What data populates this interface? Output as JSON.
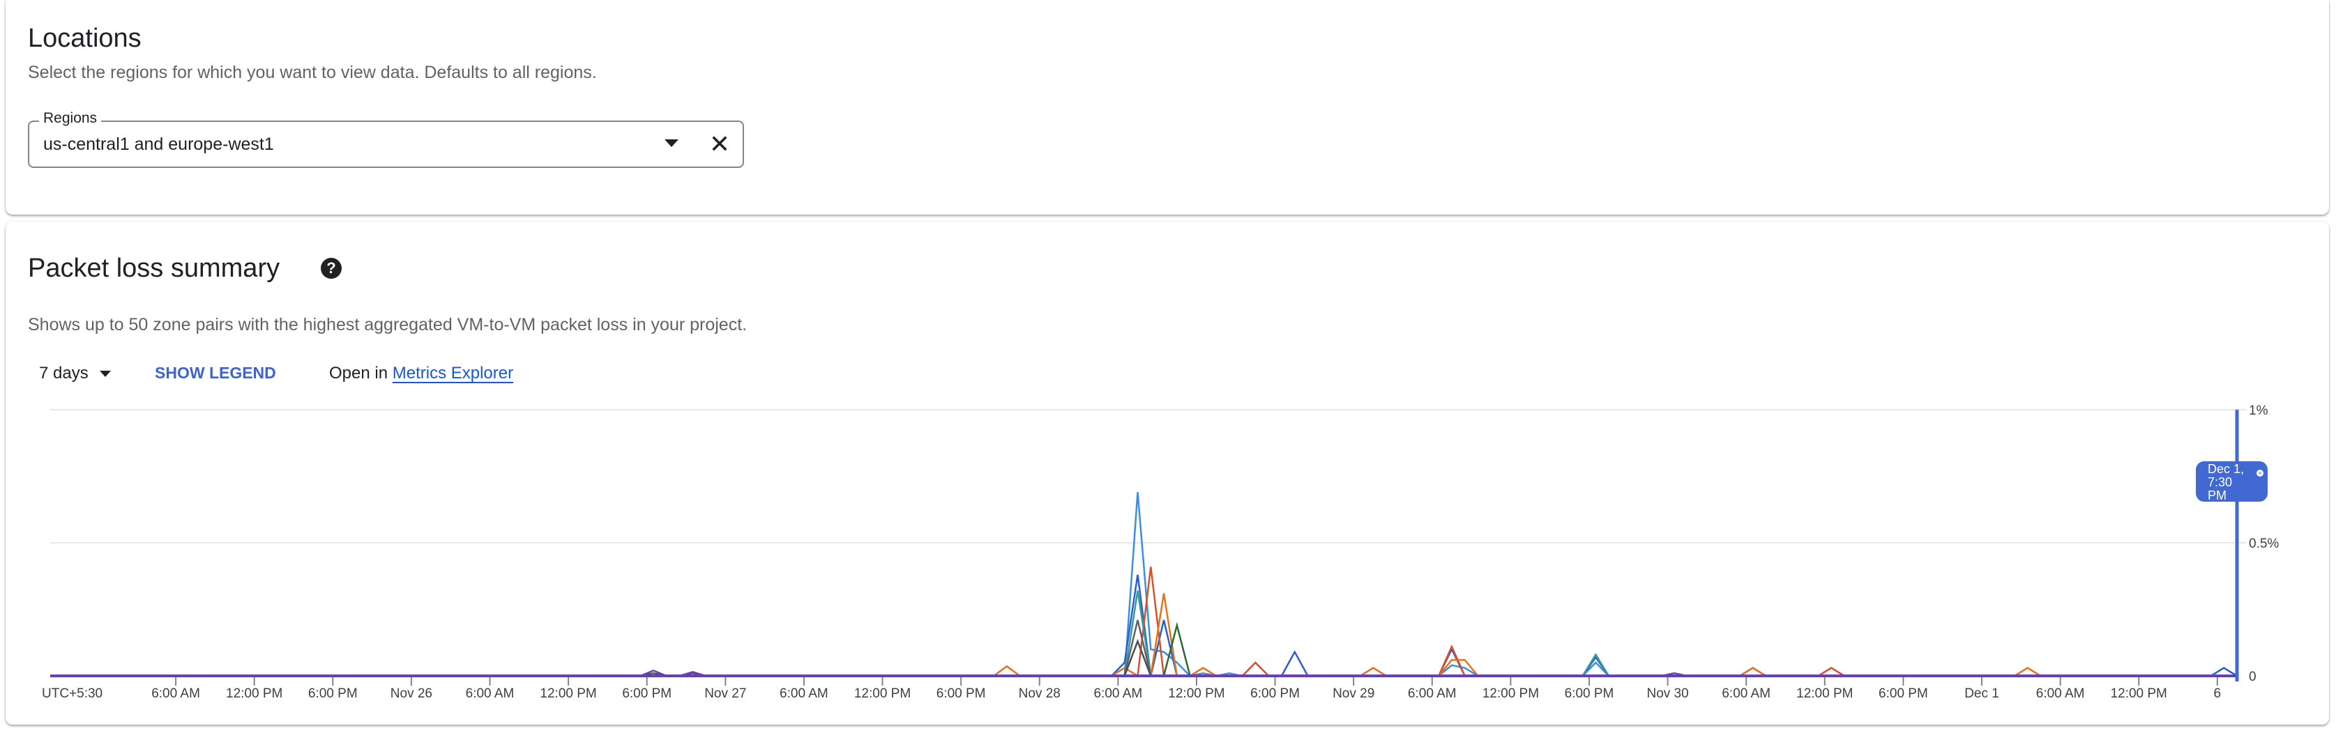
{
  "locations": {
    "title": "Locations",
    "description": "Select the regions for which you want to view data. Defaults to all regions.",
    "regions_field": {
      "label": "Regions",
      "value": "us-central1 and europe-west1"
    }
  },
  "packet_loss": {
    "title": "Packet loss summary",
    "help_icon": "help-circle-icon",
    "description": "Shows up to 50 zone pairs with the highest aggregated VM-to-VM packet loss in your project.",
    "time_range": "7 days",
    "show_legend": "SHOW LEGEND",
    "open_in": "Open in",
    "metrics_explorer": "Metrics Explorer",
    "cursor_label": "Dec 1, 7:30 PM",
    "cursor_label_lines": [
      "Dec 1,",
      "7:30",
      "PM"
    ]
  },
  "chart_data": {
    "type": "line",
    "x_range": [
      "Nov 24 19:30",
      "Dec 1 19:30"
    ],
    "ylim": [
      0,
      1
    ],
    "y_unit": "%",
    "y_ticks": [
      "0",
      "0.5%",
      "1%"
    ],
    "x_tick_labels": [
      "UTC+5:30",
      "6:00 AM",
      "12:00 PM",
      "6:00 PM",
      "Nov 26",
      "6:00 AM",
      "12:00 PM",
      "6:00 PM",
      "Nov 27",
      "6:00 AM",
      "12:00 PM",
      "6:00 PM",
      "Nov 28",
      "6:00 AM",
      "12:00 PM",
      "6:00 PM",
      "Nov 29",
      "6:00 AM",
      "12:00 PM",
      "6:00 PM",
      "Nov 30",
      "6:00 AM",
      "12:00 PM",
      "6:00 PM",
      "Dec 1",
      "6:00 AM",
      "12:00 PM",
      "6"
    ],
    "grid": true,
    "legend": "hidden",
    "baseline_color": "#6a3fb5",
    "cursor_color": "#4169d1",
    "series": [
      {
        "color": "#3b8ee6",
        "points": [
          [
            "Nov 28 07:30",
            0.69
          ],
          [
            "Nov 28 08:30",
            0.1
          ],
          [
            "Nov 28 09:30",
            0.09
          ],
          [
            "Nov 28 10:30",
            0.05
          ],
          [
            "Nov 28 12:30",
            0.01
          ],
          [
            "Nov 28 14:30",
            0.01
          ],
          [
            "Nov 29 07:30",
            0.04
          ],
          [
            "Nov 29 08:30",
            0.03
          ],
          [
            "Nov 29 18:30",
            0.05
          ],
          [
            "Nov 30 06:30",
            0.03
          ]
        ]
      },
      {
        "color": "#2a5fd0",
        "points": [
          [
            "Nov 28 06:30",
            0.05
          ],
          [
            "Nov 28 07:30",
            0.38
          ],
          [
            "Nov 28 09:30",
            0.21
          ],
          [
            "Nov 28 19:30",
            0.09
          ],
          [
            "Nov 29 07:30",
            0.1
          ],
          [
            "Nov 29 18:30",
            0.07
          ],
          [
            "Dec 1 18:30",
            0.03
          ]
        ]
      },
      {
        "color": "#d6502b",
        "points": [
          [
            "Nov 28 08:30",
            0.41
          ],
          [
            "Nov 28 16:30",
            0.05
          ],
          [
            "Nov 29 07:30",
            0.11
          ],
          [
            "Nov 30 12:30",
            0.03
          ]
        ]
      },
      {
        "color": "#e8711c",
        "points": [
          [
            "Nov 27 21:30",
            0.036
          ],
          [
            "Nov 28 06:30",
            0.03
          ],
          [
            "Nov 28 09:30",
            0.31
          ],
          [
            "Nov 28 12:30",
            0.03
          ],
          [
            "Nov 29 01:30",
            0.03
          ],
          [
            "Nov 29 07:30",
            0.06
          ],
          [
            "Nov 29 08:30",
            0.06
          ],
          [
            "Nov 30 06:30",
            0.03
          ],
          [
            "Dec 1 03:30",
            0.03
          ]
        ]
      },
      {
        "color": "#2e6b30",
        "points": [
          [
            "Nov 28 10:30",
            0.19
          ],
          [
            "Nov 26 18:30",
            0.01
          ],
          [
            "Nov 26 21:30",
            0.01
          ]
        ]
      },
      {
        "color": "#3a9a96",
        "points": [
          [
            "Nov 28 07:30",
            0.32
          ],
          [
            "Nov 29 18:30",
            0.08
          ]
        ]
      },
      {
        "color": "#5f6368",
        "points": [
          [
            "Nov 28 07:30",
            0.21
          ]
        ]
      },
      {
        "color": "#4a4f55",
        "points": [
          [
            "Nov 28 07:30",
            0.13
          ]
        ]
      },
      {
        "color": "#6a3fb5",
        "points": [
          [
            "Nov 26 18:30",
            0.02
          ],
          [
            "Nov 26 21:30",
            0.015
          ],
          [
            "Nov 30 00:30",
            0.01
          ]
        ]
      }
    ]
  }
}
